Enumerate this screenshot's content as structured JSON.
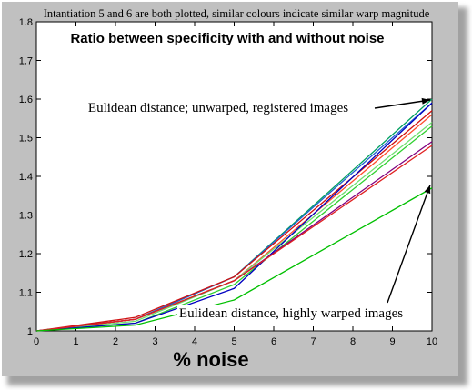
{
  "chart_data": {
    "type": "line",
    "top_caption": "Intantiation 5 and 6 are both plotted, similar colours indicate similar warp magnitude",
    "title": "Ratio between specificity with and without noise",
    "xlabel": "% noise",
    "ylabel": "",
    "xlim": [
      0,
      10
    ],
    "ylim": [
      1,
      1.8
    ],
    "x_ticks": [
      "0",
      "1",
      "2",
      "3",
      "4",
      "5",
      "6",
      "7",
      "8",
      "9",
      "10"
    ],
    "y_ticks": [
      "1",
      "1.1",
      "1.2",
      "1.3",
      "1.4",
      "1.5",
      "1.6",
      "1.7",
      "1.8"
    ],
    "grid": false,
    "x": [
      0,
      2.5,
      5,
      10
    ],
    "series": [
      {
        "color": "#00a060",
        "values": [
          1.0,
          1.03,
          1.14,
          1.6
        ]
      },
      {
        "color": "#2060d0",
        "values": [
          1.0,
          1.03,
          1.14,
          1.59
        ]
      },
      {
        "color": "#d01010",
        "values": [
          1.0,
          1.035,
          1.14,
          1.57
        ]
      },
      {
        "color": "#ff5030",
        "values": [
          1.0,
          1.03,
          1.13,
          1.56
        ]
      },
      {
        "color": "#70e070",
        "values": [
          1.0,
          1.025,
          1.13,
          1.54
        ]
      },
      {
        "color": "#30d030",
        "values": [
          1.0,
          1.02,
          1.12,
          1.53
        ]
      },
      {
        "color": "#0000c0",
        "values": [
          1.0,
          1.02,
          1.11,
          1.59
        ]
      },
      {
        "color": "#800080",
        "values": [
          1.0,
          1.03,
          1.13,
          1.49
        ]
      },
      {
        "color": "#e02020",
        "values": [
          1.0,
          1.03,
          1.13,
          1.48
        ]
      },
      {
        "color": "#00c000",
        "values": [
          1.0,
          1.015,
          1.08,
          1.37
        ]
      }
    ],
    "annotations": [
      {
        "text": "Eulidean distance; unwarped, registered images",
        "target_x": 10,
        "target_y": 1.6
      },
      {
        "text": "Eulidean distance, highly warped images",
        "target_x": 10,
        "target_y": 1.38
      }
    ]
  }
}
